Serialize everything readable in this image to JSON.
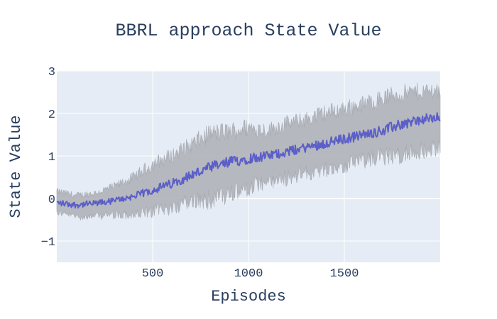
{
  "chart_data": {
    "type": "line",
    "title": "BBRL approach State Value",
    "xlabel": "Episodes",
    "ylabel": "State Value",
    "xlim": [
      0,
      2000
    ],
    "ylim": [
      -1.5,
      3
    ],
    "x_ticks": [
      500,
      1000,
      1500
    ],
    "x_tick_labels": [
      "500",
      "1000",
      "1500"
    ],
    "y_ticks": [
      -1,
      0,
      1,
      2,
      3
    ],
    "y_tick_labels": [
      "−1",
      "0",
      "1",
      "2",
      "3"
    ],
    "grid": true,
    "legend": "none",
    "colors": {
      "background": "#e5ecf6",
      "grid": "#ffffff",
      "line": "#5b5fc7",
      "band": "#b0b3b9",
      "text": "#2a3f5f"
    },
    "series": [
      {
        "kind": "mean-line",
        "x": [
          0,
          100,
          200,
          300,
          400,
          500,
          600,
          700,
          800,
          900,
          1000,
          1100,
          1200,
          1300,
          1400,
          1500,
          1600,
          1700,
          1800,
          1900,
          2000
        ],
        "y": [
          -0.1,
          -0.15,
          -0.12,
          -0.05,
          0.05,
          0.2,
          0.35,
          0.55,
          0.72,
          0.85,
          0.95,
          1.0,
          1.1,
          1.2,
          1.3,
          1.4,
          1.5,
          1.6,
          1.75,
          1.85,
          1.9
        ]
      },
      {
        "kind": "band",
        "x": [
          0,
          100,
          200,
          300,
          400,
          500,
          600,
          700,
          800,
          900,
          1000,
          1100,
          1200,
          1300,
          1400,
          1500,
          1600,
          1700,
          1800,
          1900,
          2000
        ],
        "upper": [
          0.15,
          0.05,
          0.1,
          0.25,
          0.45,
          0.75,
          0.95,
          1.2,
          1.45,
          1.5,
          1.6,
          1.55,
          1.7,
          1.8,
          1.95,
          2.05,
          2.15,
          2.3,
          2.4,
          2.45,
          2.5
        ],
        "lower": [
          -0.3,
          -0.4,
          -0.4,
          -0.35,
          -0.35,
          -0.25,
          -0.15,
          0.0,
          0.05,
          0.15,
          0.3,
          0.45,
          0.55,
          0.65,
          0.75,
          0.85,
          0.95,
          1.05,
          1.1,
          1.2,
          1.25
        ]
      }
    ]
  }
}
